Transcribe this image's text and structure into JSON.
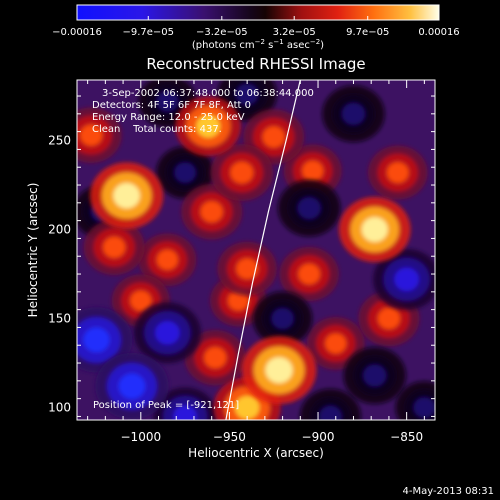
{
  "chart_data": {
    "type": "heatmap",
    "title": "Reconstructed RHESSI Image",
    "xlabel": "Heliocentric X (arcsec)",
    "ylabel": "Heliocentric Y (arcsec)",
    "xlim": [
      -1036,
      -834
    ],
    "ylim": [
      93,
      284
    ],
    "x_ticks": [
      -1000,
      -950,
      -900,
      -850
    ],
    "x_tick_labels": [
      "−1000",
      "−950",
      "−900",
      "−850"
    ],
    "y_ticks": [
      100,
      150,
      200,
      250
    ],
    "y_tick_labels": [
      "100",
      "150",
      "200",
      "250"
    ],
    "colorbar": {
      "ticks": [
        -0.00016,
        -9.7e-05,
        -3.2e-05,
        3.2e-05,
        9.7e-05,
        0.00016
      ],
      "tick_labels": [
        "−0.00016",
        "−9.7e−05",
        "−3.2e−05",
        "3.2e−05",
        "9.7e−05",
        "0.00016"
      ],
      "unit_prefix": "(photons cm",
      "unit_exp1": "−2",
      "unit_mid": " s",
      "unit_exp2": "−1",
      "unit_mid2": " asec",
      "unit_exp3": "−2",
      "unit_suffix": ")"
    },
    "annotations": {
      "time_range": "3-Sep-2002 06:37:48.000 to 06:38:44.000",
      "detectors": "Detectors: 4F 5F 6F 7F 8F, Att 0",
      "energy": "Energy Range: 12.0 - 25.0 keV",
      "clean": "Clean    Total counts: 437.",
      "peak": "Position of Peak = [-921,121]"
    },
    "peak": {
      "x": -921,
      "y": 121
    },
    "blobs": [
      {
        "x": -1008,
        "y": 219,
        "a": 0.95
      },
      {
        "x": -1028,
        "y": 253,
        "a": 0.55
      },
      {
        "x": -962,
        "y": 258,
        "a": 0.7
      },
      {
        "x": -943,
        "y": 232,
        "a": 0.6
      },
      {
        "x": -960,
        "y": 210,
        "a": 0.55
      },
      {
        "x": -925,
        "y": 252,
        "a": 0.55
      },
      {
        "x": -903,
        "y": 233,
        "a": 0.45
      },
      {
        "x": -868,
        "y": 200,
        "a": 0.9
      },
      {
        "x": -855,
        "y": 232,
        "a": 0.5
      },
      {
        "x": -1015,
        "y": 190,
        "a": 0.55
      },
      {
        "x": -985,
        "y": 183,
        "a": 0.45
      },
      {
        "x": -940,
        "y": 178,
        "a": 0.5
      },
      {
        "x": -945,
        "y": 160,
        "a": 0.4
      },
      {
        "x": -1000,
        "y": 160,
        "a": 0.45
      },
      {
        "x": -958,
        "y": 128,
        "a": 0.55
      },
      {
        "x": -905,
        "y": 175,
        "a": 0.5
      },
      {
        "x": -922,
        "y": 121,
        "a": 1.0
      },
      {
        "x": -940,
        "y": 100,
        "a": 0.75
      },
      {
        "x": -890,
        "y": 136,
        "a": 0.45
      },
      {
        "x": -860,
        "y": 150,
        "a": 0.55
      },
      {
        "x": -1005,
        "y": 112,
        "a": -0.95
      },
      {
        "x": -1025,
        "y": 138,
        "a": -0.9
      },
      {
        "x": -985,
        "y": 142,
        "a": -0.75
      },
      {
        "x": -975,
        "y": 95,
        "a": -0.65
      },
      {
        "x": -868,
        "y": 118,
        "a": -0.6
      },
      {
        "x": -850,
        "y": 172,
        "a": -0.75
      },
      {
        "x": -905,
        "y": 212,
        "a": -0.6
      },
      {
        "x": -880,
        "y": 265,
        "a": -0.6
      },
      {
        "x": -940,
        "y": 276,
        "a": -0.5
      },
      {
        "x": -985,
        "y": 272,
        "a": -0.45
      },
      {
        "x": -1022,
        "y": 210,
        "a": -0.45
      },
      {
        "x": -920,
        "y": 150,
        "a": -0.5
      },
      {
        "x": -975,
        "y": 232,
        "a": -0.45
      },
      {
        "x": -893,
        "y": 95,
        "a": -0.55
      },
      {
        "x": -840,
        "y": 100,
        "a": -0.45
      }
    ],
    "limb": [
      [
        -952,
        93
      ],
      [
        -945,
        130
      ],
      [
        -937,
        170
      ],
      [
        -928,
        210
      ],
      [
        -918,
        250
      ],
      [
        -910,
        284
      ]
    ]
  },
  "footer": {
    "date": "4-May-2013 08:31"
  }
}
